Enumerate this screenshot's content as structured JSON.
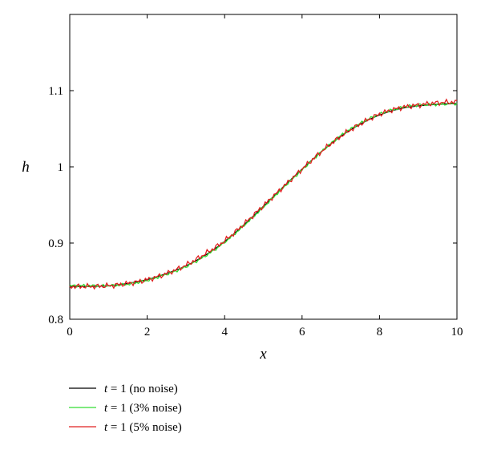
{
  "chart_data": {
    "type": "line",
    "xlabel": "x",
    "ylabel": "h",
    "xlim": [
      0,
      10
    ],
    "ylim": [
      0.8,
      1.2
    ],
    "x_ticks": [
      "0",
      "2",
      "4",
      "6",
      "8",
      "10"
    ],
    "y_ticks": [
      "0.8",
      "0.9",
      "1",
      "1.1"
    ],
    "grid": false,
    "legend_position": "bottom-left, below plot",
    "x": [
      0,
      0.5,
      1,
      1.5,
      2,
      2.5,
      3,
      3.5,
      4,
      4.5,
      5,
      5.5,
      6,
      6.5,
      7,
      7.5,
      8,
      8.5,
      9,
      9.5,
      10
    ],
    "series": [
      {
        "name": "t = 1 (no noise)",
        "var": "t",
        "rest": " = 1 (no noise)",
        "color": "#000000",
        "noise_amplitude": 0,
        "values": [
          0.843,
          0.843,
          0.844,
          0.847,
          0.852,
          0.86,
          0.87,
          0.884,
          0.902,
          0.924,
          0.948,
          0.973,
          0.997,
          1.02,
          1.04,
          1.056,
          1.068,
          1.076,
          1.08,
          1.082,
          1.083
        ]
      },
      {
        "name": "t = 1 (3% noise)",
        "var": "t",
        "rest": " = 1 (3% noise)",
        "color": "#33dd33",
        "noise_amplitude": 0.002,
        "values": [
          0.844,
          0.844,
          0.844,
          0.846,
          0.851,
          0.859,
          0.869,
          0.883,
          0.901,
          0.923,
          0.947,
          0.972,
          0.996,
          1.02,
          1.041,
          1.057,
          1.069,
          1.077,
          1.081,
          1.082,
          1.083
        ]
      },
      {
        "name": "t = 1 (5% noise)",
        "var": "t",
        "rest": " = 1 (5% noise)",
        "color": "#e02020",
        "noise_amplitude": 0.004,
        "values": [
          0.843,
          0.843,
          0.844,
          0.847,
          0.852,
          0.86,
          0.871,
          0.886,
          0.903,
          0.925,
          0.949,
          0.973,
          0.997,
          1.02,
          1.04,
          1.056,
          1.069,
          1.077,
          1.081,
          1.084,
          1.085
        ]
      }
    ]
  }
}
